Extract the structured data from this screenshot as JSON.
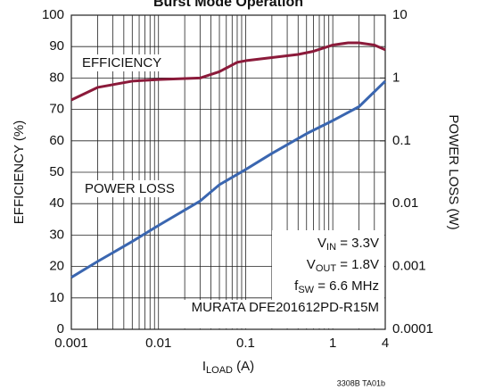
{
  "chart_data": {
    "type": "line",
    "title": "Burst Mode Operation",
    "x_label": {
      "main": "I",
      "sub": "LOAD",
      "rest": " (A)"
    },
    "y_label": "EFFICIENCY (%)",
    "y2_label": "POWER LOSS (W)",
    "footnote": "3308B TA01b",
    "log_x": true,
    "log_y2": true,
    "grid": true,
    "xlim": [
      0.001,
      4
    ],
    "xticks": [
      0.001,
      0.01,
      0.1,
      1,
      4
    ],
    "ylim": [
      0,
      100
    ],
    "yticks": [
      0,
      10,
      20,
      30,
      40,
      50,
      60,
      70,
      80,
      90,
      100
    ],
    "y2lim": [
      0.0001,
      10
    ],
    "y2ticks": [
      0.0001,
      0.001,
      0.01,
      0.1,
      1,
      10
    ],
    "series": [
      {
        "name": "EFFICIENCY",
        "color": "#8b1a3a",
        "x": [
          0.001,
          0.002,
          0.005,
          0.01,
          0.03,
          0.05,
          0.08,
          0.1,
          0.2,
          0.4,
          0.6,
          1,
          1.5,
          2,
          3,
          4
        ],
        "values": [
          73,
          77,
          79,
          79.5,
          80,
          82,
          85,
          85.5,
          86.5,
          87.5,
          88.5,
          90.5,
          91.2,
          91.2,
          90.5,
          89
        ]
      },
      {
        "name": "POWER LOSS",
        "color": "#3a66b0",
        "axis": "y2",
        "x": [
          0.001,
          0.002,
          0.005,
          0.01,
          0.03,
          0.05,
          0.1,
          0.2,
          0.5,
          1,
          2,
          4
        ],
        "values": [
          0.00067,
          0.0012,
          0.0025,
          0.0045,
          0.011,
          0.02,
          0.035,
          0.063,
          0.13,
          0.21,
          0.35,
          0.89
        ]
      }
    ],
    "conditions": [
      {
        "main": "V",
        "sub": "IN",
        "rest": " = 3.3V"
      },
      {
        "main": "V",
        "sub": "OUT",
        "rest": " = 1.8V"
      },
      {
        "main": "f",
        "sub": "SW",
        "rest": " = 6.6 MHz"
      },
      {
        "main": "MURATA DFE201612PD-R15M"
      }
    ]
  }
}
